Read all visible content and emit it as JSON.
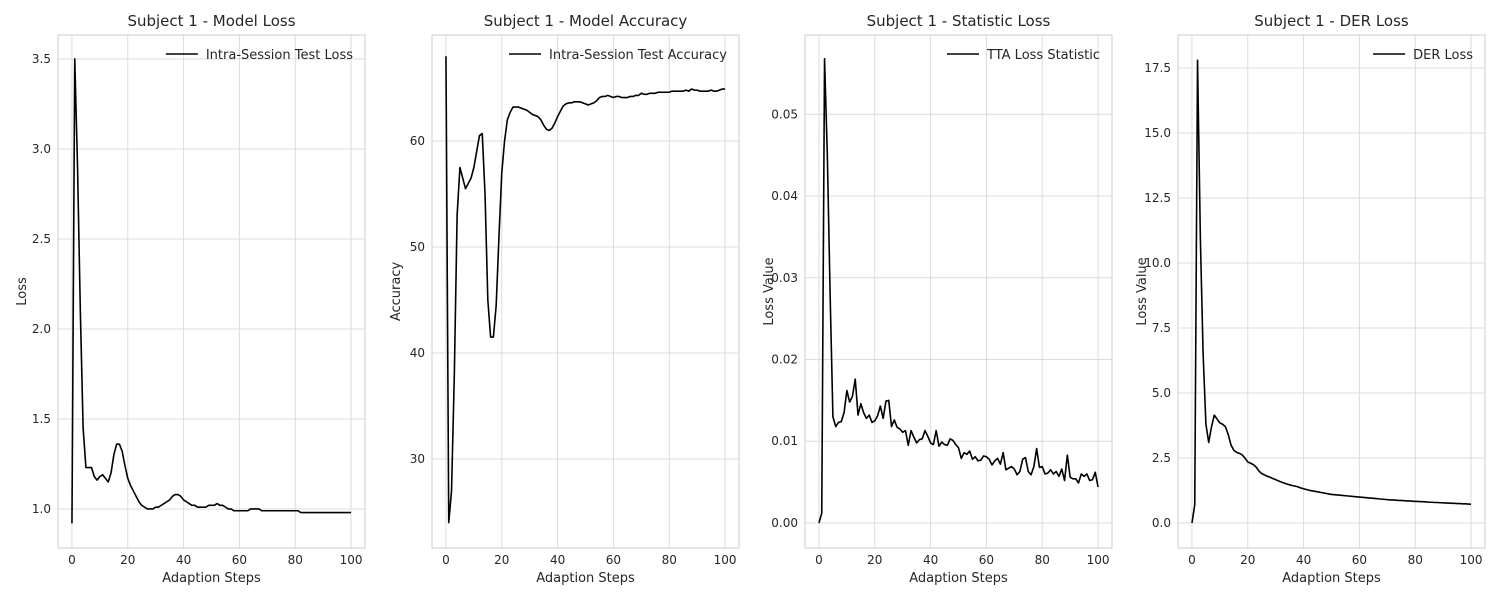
{
  "chart_data": [
    {
      "type": "line",
      "title": "Subject 1 - Model Loss",
      "x_label": "Adaption Steps",
      "y_label": "Loss",
      "x": [
        0,
        1,
        2,
        3,
        4,
        5,
        6,
        7,
        8,
        9,
        10,
        11,
        12,
        13,
        14,
        15,
        16,
        17,
        18,
        19,
        20,
        21,
        22,
        23,
        24,
        25,
        26,
        27,
        28,
        29,
        30,
        31,
        32,
        33,
        34,
        35,
        36,
        37,
        38,
        39,
        40,
        41,
        42,
        43,
        44,
        45,
        46,
        47,
        48,
        49,
        50,
        51,
        52,
        53,
        54,
        55,
        56,
        57,
        58,
        59,
        60,
        61,
        62,
        63,
        64,
        65,
        66,
        67,
        68,
        69,
        70,
        71,
        72,
        73,
        74,
        75,
        76,
        77,
        78,
        79,
        80,
        81,
        82,
        83,
        84,
        85,
        86,
        87,
        88,
        89,
        90,
        91,
        92,
        93,
        94,
        95,
        96,
        97,
        98,
        99,
        100
      ],
      "series": [
        {
          "name": "Intra-Session Test Loss",
          "color": "#000000",
          "values": [
            0.92,
            3.5,
            2.9,
            2.1,
            1.45,
            1.23,
            1.23,
            1.23,
            1.18,
            1.16,
            1.18,
            1.19,
            1.17,
            1.15,
            1.2,
            1.3,
            1.36,
            1.36,
            1.32,
            1.24,
            1.17,
            1.13,
            1.1,
            1.07,
            1.04,
            1.02,
            1.01,
            1.0,
            1.0,
            1.0,
            1.01,
            1.01,
            1.02,
            1.03,
            1.04,
            1.05,
            1.07,
            1.08,
            1.08,
            1.07,
            1.05,
            1.04,
            1.03,
            1.02,
            1.02,
            1.01,
            1.01,
            1.01,
            1.01,
            1.02,
            1.02,
            1.02,
            1.03,
            1.02,
            1.02,
            1.01,
            1.0,
            1.0,
            0.99,
            0.99,
            0.99,
            0.99,
            0.99,
            0.99,
            1.0,
            1.0,
            1.0,
            1.0,
            0.99,
            0.99,
            0.99,
            0.99,
            0.99,
            0.99,
            0.99,
            0.99,
            0.99,
            0.99,
            0.99,
            0.99,
            0.99,
            0.99,
            0.98,
            0.98,
            0.98,
            0.98,
            0.98,
            0.98,
            0.98,
            0.98,
            0.98,
            0.98,
            0.98,
            0.98,
            0.98,
            0.98,
            0.98,
            0.98,
            0.98,
            0.98,
            0.98
          ]
        }
      ],
      "xlim": [
        -5,
        105
      ],
      "xticks": [
        0,
        20,
        40,
        60,
        80,
        100
      ],
      "ylim": [
        0.783,
        3.633
      ],
      "yticks": [
        {
          "value": 1,
          "label": "1.0"
        },
        {
          "value": 1.5,
          "label": "1.5"
        },
        {
          "value": 2,
          "label": "2.0"
        },
        {
          "value": 2.5,
          "label": "2.5"
        },
        {
          "value": 3,
          "label": "3.0"
        },
        {
          "value": 3.5,
          "label": "3.5"
        }
      ],
      "grid": true,
      "legend": "upper right"
    },
    {
      "type": "line",
      "title": "Subject 1 - Model Accuracy",
      "x_label": "Adaption Steps",
      "y_label": "Accuracy",
      "x": [
        0,
        1,
        2,
        3,
        4,
        5,
        6,
        7,
        8,
        9,
        10,
        11,
        12,
        13,
        14,
        15,
        16,
        17,
        18,
        19,
        20,
        21,
        22,
        23,
        24,
        25,
        26,
        27,
        28,
        29,
        30,
        31,
        32,
        33,
        34,
        35,
        36,
        37,
        38,
        39,
        40,
        41,
        42,
        43,
        44,
        45,
        46,
        47,
        48,
        49,
        50,
        51,
        52,
        53,
        54,
        55,
        56,
        57,
        58,
        59,
        60,
        61,
        62,
        63,
        64,
        65,
        66,
        67,
        68,
        69,
        70,
        71,
        72,
        73,
        74,
        75,
        76,
        77,
        78,
        79,
        80,
        81,
        82,
        83,
        84,
        85,
        86,
        87,
        88,
        89,
        90,
        91,
        92,
        93,
        94,
        95,
        96,
        97,
        98,
        99,
        100
      ],
      "series": [
        {
          "name": "Intra-Session Test Accuracy",
          "color": "#000000",
          "values": [
            68,
            24,
            27,
            38,
            53,
            57.5,
            56.5,
            55.5,
            56,
            56.5,
            57.5,
            59,
            60.5,
            60.7,
            55,
            45,
            41.5,
            41.5,
            44.5,
            51,
            57,
            60,
            62,
            62.7,
            63.2,
            63.2,
            63.2,
            63.1,
            63,
            62.9,
            62.7,
            62.5,
            62.4,
            62.3,
            62,
            61.5,
            61.1,
            61,
            61.2,
            61.7,
            62.3,
            62.8,
            63.3,
            63.5,
            63.6,
            63.6,
            63.7,
            63.7,
            63.7,
            63.6,
            63.5,
            63.4,
            63.5,
            63.6,
            63.8,
            64.1,
            64.2,
            64.2,
            64.3,
            64.2,
            64.1,
            64.2,
            64.2,
            64.1,
            64.1,
            64.1,
            64.2,
            64.2,
            64.3,
            64.3,
            64.5,
            64.4,
            64.4,
            64.5,
            64.5,
            64.5,
            64.6,
            64.6,
            64.6,
            64.6,
            64.6,
            64.7,
            64.7,
            64.7,
            64.7,
            64.7,
            64.8,
            64.7,
            64.9,
            64.8,
            64.8,
            64.7,
            64.7,
            64.7,
            64.7,
            64.8,
            64.7,
            64.7,
            64.8,
            64.9,
            64.9
          ]
        }
      ],
      "xlim": [
        -5,
        105
      ],
      "xticks": [
        0,
        20,
        40,
        60,
        80,
        100
      ],
      "ylim": [
        21.6,
        70
      ],
      "yticks": [
        30,
        40,
        50,
        60
      ],
      "grid": true,
      "legend": "upper right"
    },
    {
      "type": "line",
      "title": "Subject 1 - Statistic Loss",
      "x_label": "Adaption Steps",
      "y_label": "Loss Value",
      "x": [
        0,
        1,
        2,
        3,
        4,
        5,
        6,
        7,
        8,
        9,
        10,
        11,
        12,
        13,
        14,
        15,
        16,
        17,
        18,
        19,
        20,
        21,
        22,
        23,
        24,
        25,
        26,
        27,
        28,
        29,
        30,
        31,
        32,
        33,
        34,
        35,
        36,
        37,
        38,
        39,
        40,
        41,
        42,
        43,
        44,
        45,
        46,
        47,
        48,
        49,
        50,
        51,
        52,
        53,
        54,
        55,
        56,
        57,
        58,
        59,
        60,
        61,
        62,
        63,
        64,
        65,
        66,
        67,
        68,
        69,
        70,
        71,
        72,
        73,
        74,
        75,
        76,
        77,
        78,
        79,
        80,
        81,
        82,
        83,
        84,
        85,
        86,
        87,
        88,
        89,
        90,
        91,
        92,
        93,
        94,
        95,
        96,
        97,
        98,
        99,
        100
      ],
      "series": [
        {
          "name": "TTA Loss Statistic",
          "color": "#000000",
          "values": [
            0.0,
            0.0012,
            0.0568,
            0.045,
            0.028,
            0.013,
            0.0118,
            0.0123,
            0.0124,
            0.0135,
            0.0162,
            0.0148,
            0.0155,
            0.0176,
            0.0132,
            0.0146,
            0.0135,
            0.0128,
            0.0132,
            0.0123,
            0.0125,
            0.0131,
            0.0143,
            0.0128,
            0.0149,
            0.015,
            0.0118,
            0.0126,
            0.0117,
            0.0115,
            0.0111,
            0.0113,
            0.0095,
            0.0113,
            0.0105,
            0.0098,
            0.0102,
            0.0103,
            0.0113,
            0.0106,
            0.0098,
            0.0096,
            0.0113,
            0.0094,
            0.0099,
            0.0096,
            0.0095,
            0.0103,
            0.0101,
            0.0096,
            0.0092,
            0.0079,
            0.0086,
            0.0084,
            0.0088,
            0.0078,
            0.0081,
            0.0076,
            0.0077,
            0.0082,
            0.0081,
            0.0078,
            0.0071,
            0.0076,
            0.0079,
            0.0072,
            0.0086,
            0.0065,
            0.0067,
            0.0069,
            0.0066,
            0.0059,
            0.0063,
            0.0078,
            0.008,
            0.0063,
            0.0059,
            0.0069,
            0.0091,
            0.0068,
            0.0069,
            0.006,
            0.0061,
            0.0065,
            0.006,
            0.0063,
            0.0057,
            0.0066,
            0.0052,
            0.0083,
            0.0056,
            0.0054,
            0.0054,
            0.0049,
            0.006,
            0.0057,
            0.006,
            0.0052,
            0.0053,
            0.0062,
            0.0044
          ]
        }
      ],
      "xlim": [
        -5,
        105
      ],
      "xticks": [
        0,
        20,
        40,
        60,
        80,
        100
      ],
      "ylim": [
        -0.00306,
        0.0597
      ],
      "yticks": [
        {
          "value": 0,
          "label": "0.00"
        },
        {
          "value": 0.01,
          "label": "0.01"
        },
        {
          "value": 0.02,
          "label": "0.02"
        },
        {
          "value": 0.03,
          "label": "0.03"
        },
        {
          "value": 0.04,
          "label": "0.04"
        },
        {
          "value": 0.05,
          "label": "0.05"
        }
      ],
      "grid": true,
      "legend": "upper right"
    },
    {
      "type": "line",
      "title": "Subject 1 - DER Loss",
      "x_label": "Adaption Steps",
      "y_label": "Loss Value",
      "x": [
        0,
        1,
        2,
        3,
        4,
        5,
        6,
        7,
        8,
        9,
        10,
        11,
        12,
        13,
        14,
        15,
        16,
        17,
        18,
        19,
        20,
        21,
        22,
        23,
        24,
        25,
        26,
        27,
        28,
        29,
        30,
        31,
        32,
        33,
        34,
        35,
        36,
        37,
        38,
        39,
        40,
        41,
        42,
        43,
        44,
        45,
        46,
        47,
        48,
        49,
        50,
        51,
        52,
        53,
        54,
        55,
        56,
        57,
        58,
        59,
        60,
        61,
        62,
        63,
        64,
        65,
        66,
        67,
        68,
        69,
        70,
        71,
        72,
        73,
        74,
        75,
        76,
        77,
        78,
        79,
        80,
        81,
        82,
        83,
        84,
        85,
        86,
        87,
        88,
        89,
        90,
        91,
        92,
        93,
        94,
        95,
        96,
        97,
        98,
        99,
        100
      ],
      "series": [
        {
          "name": "DER Loss",
          "color": "#000000",
          "values": [
            0.0,
            0.7,
            17.8,
            11,
            6.5,
            3.8,
            3.1,
            3.7,
            4.15,
            4.0,
            3.85,
            3.8,
            3.7,
            3.4,
            3.0,
            2.8,
            2.72,
            2.68,
            2.62,
            2.5,
            2.35,
            2.3,
            2.25,
            2.15,
            2.0,
            1.9,
            1.85,
            1.8,
            1.76,
            1.71,
            1.67,
            1.62,
            1.58,
            1.54,
            1.5,
            1.47,
            1.44,
            1.42,
            1.39,
            1.35,
            1.32,
            1.29,
            1.26,
            1.24,
            1.22,
            1.2,
            1.18,
            1.16,
            1.14,
            1.12,
            1.1,
            1.09,
            1.08,
            1.07,
            1.06,
            1.05,
            1.04,
            1.03,
            1.02,
            1.01,
            1.0,
            0.99,
            0.98,
            0.97,
            0.96,
            0.95,
            0.94,
            0.93,
            0.92,
            0.91,
            0.9,
            0.89,
            0.89,
            0.88,
            0.87,
            0.87,
            0.86,
            0.85,
            0.85,
            0.84,
            0.83,
            0.83,
            0.82,
            0.82,
            0.81,
            0.8,
            0.8,
            0.79,
            0.79,
            0.78,
            0.78,
            0.77,
            0.77,
            0.76,
            0.76,
            0.75,
            0.75,
            0.74,
            0.74,
            0.73,
            0.72
          ]
        }
      ],
      "xlim": [
        -5,
        105
      ],
      "xticks": [
        0,
        20,
        40,
        60,
        80,
        100
      ],
      "ylim": [
        -0.96,
        18.77
      ],
      "yticks": [
        {
          "value": 0,
          "label": "0.0"
        },
        {
          "value": 2.5,
          "label": "2.5"
        },
        {
          "value": 5,
          "label": "5.0"
        },
        {
          "value": 7.5,
          "label": "7.5"
        },
        {
          "value": 10,
          "label": "10.0"
        },
        {
          "value": 12.5,
          "label": "12.5"
        },
        {
          "value": 15,
          "label": "15.0"
        },
        {
          "value": 17.5,
          "label": "17.5"
        }
      ],
      "grid": true,
      "legend": "upper right"
    }
  ]
}
